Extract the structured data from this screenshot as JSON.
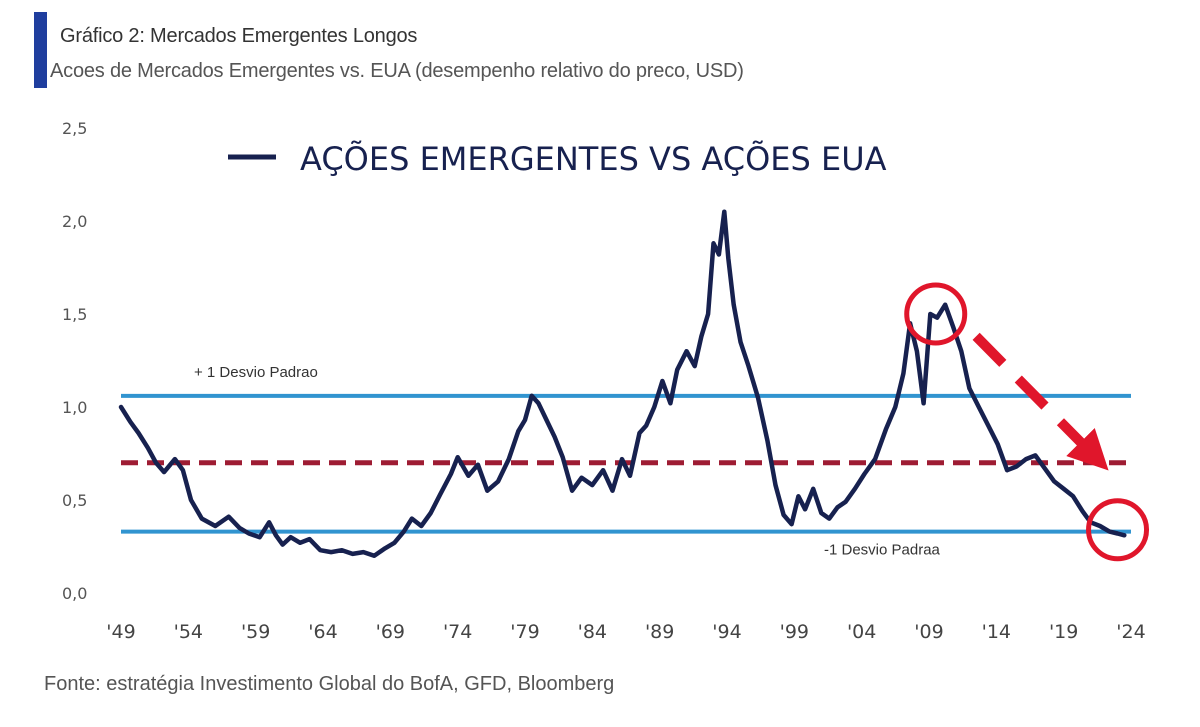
{
  "header": {
    "title": "Gráfico 2: Mercados Emergentes Longos",
    "subtitle": "Acoes de Mercados Emergentes vs. EUA (desempenho relativo do preco, USD)"
  },
  "footer": {
    "source": "Fonte: estratégia Investimento Global do BofA, GFD, Bloomberg"
  },
  "colors": {
    "accent": "#1f3e9e",
    "series": "#17214f",
    "band_lines": "#3194d0",
    "mean_line": "#9e1c33",
    "annotation": "#e0162b"
  },
  "chart_data": {
    "type": "line",
    "legend": {
      "label": "AÇÕES EMERGENTES VS AÇÕES EUA",
      "placement": "top-center"
    },
    "x_tick_labels": [
      "'49",
      "'54",
      "'59",
      "'64",
      "'69",
      "'74",
      "'79",
      "'84",
      "'89",
      "'94",
      "'99",
      "'04",
      "'09",
      "'14",
      "'19",
      "'24"
    ],
    "x_ticks": [
      1949,
      1954,
      1959,
      1964,
      1969,
      1974,
      1979,
      1984,
      1989,
      1994,
      1999,
      2004,
      2009,
      2014,
      2019,
      2024
    ],
    "xlim": [
      1949,
      2024
    ],
    "y_tick_labels": [
      "0,0",
      "0,5",
      "1,0",
      "1,5",
      "2,0",
      "2,5"
    ],
    "y_ticks": [
      0,
      0.5,
      1.0,
      1.5,
      2.0,
      2.5
    ],
    "ylim": [
      0,
      2.5
    ],
    "grid": false,
    "reference_lines": [
      {
        "label": "+ 1 Desvio Padrao",
        "value": 1.06,
        "style": "solid"
      },
      {
        "label": "",
        "value": 0.7,
        "style": "dashed"
      },
      {
        "label": "-1 Desvio Padraa",
        "value": 0.33,
        "style": "solid"
      }
    ],
    "series": [
      {
        "name": "AÇÕES EMERGENTES VS AÇÕES EUA",
        "x": [
          1949.0,
          1949.7,
          1950.3,
          1951.0,
          1951.6,
          1952.2,
          1953.0,
          1953.6,
          1954.2,
          1955.0,
          1956.0,
          1957.0,
          1957.8,
          1958.5,
          1959.3,
          1960.0,
          1960.5,
          1961.0,
          1961.6,
          1962.3,
          1963.0,
          1963.8,
          1964.6,
          1965.4,
          1966.2,
          1967.0,
          1967.8,
          1968.6,
          1969.3,
          1970.0,
          1970.6,
          1971.3,
          1972.0,
          1972.7,
          1973.5,
          1974.0,
          1974.8,
          1975.5,
          1976.2,
          1977.0,
          1977.8,
          1978.5,
          1979.0,
          1979.5,
          1980.0,
          1980.6,
          1981.2,
          1981.8,
          1982.5,
          1983.2,
          1984.0,
          1984.8,
          1985.5,
          1986.2,
          1986.8,
          1987.5,
          1988.0,
          1988.6,
          1989.2,
          1989.8,
          1990.3,
          1991.0,
          1991.6,
          1992.1,
          1992.6,
          1993.0,
          1993.4,
          1993.8,
          1994.1,
          1994.5,
          1995.0,
          1995.6,
          1996.3,
          1997.0,
          1997.6,
          1998.2,
          1998.8,
          1999.3,
          1999.8,
          2000.4,
          2001.0,
          2001.6,
          2002.2,
          2002.8,
          2003.5,
          2004.2,
          2005.0,
          2005.8,
          2006.5,
          2007.1,
          2007.6,
          2008.1,
          2008.6,
          2009.1,
          2009.6,
          2010.2,
          2010.8,
          2011.4,
          2012.0,
          2012.7,
          2013.4,
          2014.1,
          2014.8,
          2015.5,
          2016.2,
          2016.9,
          2017.6,
          2018.3,
          2019.0,
          2019.7,
          2020.4,
          2021.0,
          2021.7,
          2022.4,
          2023.0,
          2023.5
        ],
        "values": [
          1.0,
          0.92,
          0.86,
          0.78,
          0.7,
          0.65,
          0.72,
          0.66,
          0.5,
          0.4,
          0.36,
          0.41,
          0.35,
          0.32,
          0.3,
          0.38,
          0.31,
          0.26,
          0.3,
          0.27,
          0.29,
          0.23,
          0.22,
          0.23,
          0.21,
          0.22,
          0.2,
          0.24,
          0.27,
          0.33,
          0.4,
          0.36,
          0.43,
          0.53,
          0.64,
          0.73,
          0.63,
          0.69,
          0.55,
          0.6,
          0.72,
          0.87,
          0.93,
          1.06,
          1.02,
          0.93,
          0.84,
          0.73,
          0.55,
          0.62,
          0.58,
          0.66,
          0.55,
          0.72,
          0.63,
          0.86,
          0.9,
          1.0,
          1.14,
          1.02,
          1.2,
          1.3,
          1.22,
          1.38,
          1.5,
          1.88,
          1.82,
          2.05,
          1.8,
          1.55,
          1.35,
          1.22,
          1.05,
          0.82,
          0.58,
          0.42,
          0.37,
          0.52,
          0.45,
          0.56,
          0.43,
          0.4,
          0.46,
          0.49,
          0.56,
          0.64,
          0.72,
          0.88,
          1.0,
          1.18,
          1.45,
          1.3,
          1.02,
          1.5,
          1.48,
          1.55,
          1.43,
          1.3,
          1.1,
          1.0,
          0.9,
          0.8,
          0.66,
          0.68,
          0.72,
          0.74,
          0.67,
          0.6,
          0.56,
          0.52,
          0.44,
          0.38,
          0.36,
          0.33,
          0.32,
          0.31
        ]
      }
    ],
    "annotations": [
      {
        "type": "circle",
        "x": 2009.5,
        "y": 1.5,
        "color": "red"
      },
      {
        "type": "circle",
        "x": 2023.0,
        "y": 0.34,
        "color": "red"
      },
      {
        "type": "dashed-arrow",
        "from": [
          2012.5,
          1.38
        ],
        "to": [
          2021.5,
          0.72
        ],
        "color": "red"
      }
    ]
  }
}
